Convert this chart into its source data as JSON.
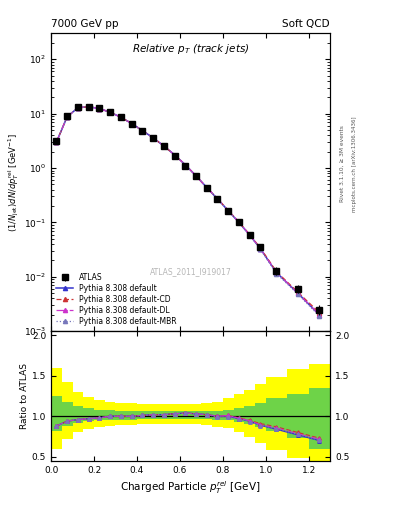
{
  "title_left": "7000 GeV pp",
  "title_right": "Soft QCD",
  "plot_title": "Relative $p_T$ (track jets)",
  "xlabel": "Charged Particle $p_T^{rel}$ [GeV]",
  "ylabel_main": "(1/Njet)dN/dp$_T^{rel}$ [GeV$^{-1}$]",
  "ylabel_ratio": "Ratio to ATLAS",
  "right_label1": "Rivet 3.1.10, ≥ 3M events",
  "right_label2": "mcplots.cern.ch [arXiv:1306.3436]",
  "watermark": "ATLAS_2011_I919017",
  "atlas_x": [
    0.025,
    0.075,
    0.125,
    0.175,
    0.225,
    0.275,
    0.325,
    0.375,
    0.425,
    0.475,
    0.525,
    0.575,
    0.625,
    0.675,
    0.725,
    0.775,
    0.825,
    0.875,
    0.925,
    0.975,
    1.05,
    1.15,
    1.25
  ],
  "atlas_y": [
    3.2,
    9.0,
    13.0,
    13.5,
    12.5,
    10.5,
    8.5,
    6.5,
    4.8,
    3.5,
    2.5,
    1.7,
    1.1,
    0.7,
    0.43,
    0.27,
    0.16,
    0.1,
    0.06,
    0.035,
    0.013,
    0.006,
    0.0025
  ],
  "atlas_yerr": [
    0.4,
    0.5,
    0.5,
    0.5,
    0.4,
    0.4,
    0.3,
    0.3,
    0.2,
    0.15,
    0.1,
    0.07,
    0.05,
    0.03,
    0.02,
    0.015,
    0.01,
    0.006,
    0.004,
    0.003,
    0.002,
    0.001,
    0.0005
  ],
  "mc_x": [
    0.025,
    0.075,
    0.125,
    0.175,
    0.225,
    0.275,
    0.325,
    0.375,
    0.425,
    0.475,
    0.525,
    0.575,
    0.625,
    0.675,
    0.725,
    0.775,
    0.825,
    0.875,
    0.925,
    0.975,
    1.05,
    1.15,
    1.25
  ],
  "pythia_default_y": [
    3.0,
    8.8,
    12.8,
    13.4,
    12.4,
    10.6,
    8.6,
    6.6,
    4.9,
    3.6,
    2.55,
    1.75,
    1.15,
    0.72,
    0.44,
    0.27,
    0.165,
    0.1,
    0.059,
    0.033,
    0.012,
    0.005,
    0.002
  ],
  "pythia_cd_y": [
    3.0,
    8.8,
    12.8,
    13.4,
    12.4,
    10.6,
    8.6,
    6.6,
    4.9,
    3.6,
    2.55,
    1.75,
    1.15,
    0.72,
    0.44,
    0.275,
    0.167,
    0.102,
    0.06,
    0.034,
    0.0125,
    0.0052,
    0.0022
  ],
  "pythia_dl_y": [
    3.0,
    8.8,
    12.8,
    13.4,
    12.4,
    10.6,
    8.6,
    6.6,
    4.9,
    3.6,
    2.55,
    1.75,
    1.15,
    0.72,
    0.44,
    0.274,
    0.166,
    0.101,
    0.059,
    0.033,
    0.012,
    0.005,
    0.002
  ],
  "pythia_mbr_y": [
    3.0,
    8.8,
    12.8,
    13.4,
    12.4,
    10.6,
    8.6,
    6.6,
    4.9,
    3.6,
    2.55,
    1.75,
    1.15,
    0.72,
    0.44,
    0.272,
    0.164,
    0.1,
    0.058,
    0.032,
    0.0115,
    0.0048,
    0.0019
  ],
  "ratio_default": [
    0.88,
    0.94,
    0.96,
    0.97,
    0.98,
    1.0,
    1.0,
    1.0,
    1.01,
    1.02,
    1.02,
    1.03,
    1.04,
    1.03,
    1.02,
    1.0,
    1.0,
    0.97,
    0.94,
    0.89,
    0.84,
    0.77,
    0.7
  ],
  "ratio_cd": [
    0.88,
    0.94,
    0.96,
    0.97,
    0.98,
    1.0,
    1.0,
    1.0,
    1.01,
    1.02,
    1.02,
    1.03,
    1.04,
    1.03,
    1.02,
    1.0,
    1.01,
    0.98,
    0.95,
    0.91,
    0.87,
    0.8,
    0.73
  ],
  "ratio_dl": [
    0.88,
    0.94,
    0.96,
    0.97,
    0.98,
    1.0,
    1.0,
    1.0,
    1.01,
    1.02,
    1.02,
    1.03,
    1.04,
    1.03,
    1.02,
    1.0,
    1.01,
    0.975,
    0.945,
    0.895,
    0.855,
    0.785,
    0.715
  ],
  "ratio_mbr": [
    0.88,
    0.94,
    0.96,
    0.97,
    0.98,
    1.0,
    1.0,
    1.0,
    1.01,
    1.02,
    1.02,
    1.03,
    1.04,
    1.03,
    1.02,
    0.99,
    0.99,
    0.965,
    0.935,
    0.885,
    0.845,
    0.775,
    0.705
  ],
  "band_x": [
    0.0,
    0.05,
    0.1,
    0.15,
    0.2,
    0.25,
    0.3,
    0.35,
    0.4,
    0.45,
    0.5,
    0.55,
    0.6,
    0.65,
    0.7,
    0.75,
    0.8,
    0.85,
    0.9,
    0.95,
    1.0,
    1.1,
    1.2,
    1.3
  ],
  "green_lo": [
    0.82,
    0.88,
    0.92,
    0.94,
    0.95,
    0.96,
    0.96,
    0.96,
    0.97,
    0.97,
    0.97,
    0.97,
    0.97,
    0.97,
    0.97,
    0.96,
    0.95,
    0.93,
    0.9,
    0.87,
    0.82,
    0.73,
    0.6,
    0.6
  ],
  "green_hi": [
    1.25,
    1.18,
    1.13,
    1.1,
    1.08,
    1.08,
    1.07,
    1.07,
    1.06,
    1.06,
    1.06,
    1.06,
    1.06,
    1.06,
    1.06,
    1.07,
    1.08,
    1.1,
    1.13,
    1.17,
    1.22,
    1.28,
    1.35,
    1.35
  ],
  "yellow_lo": [
    0.6,
    0.72,
    0.8,
    0.84,
    0.87,
    0.88,
    0.89,
    0.89,
    0.9,
    0.9,
    0.9,
    0.9,
    0.9,
    0.9,
    0.89,
    0.87,
    0.85,
    0.8,
    0.74,
    0.67,
    0.58,
    0.48,
    0.45,
    0.45
  ],
  "yellow_hi": [
    1.6,
    1.42,
    1.3,
    1.24,
    1.2,
    1.18,
    1.17,
    1.16,
    1.15,
    1.15,
    1.15,
    1.15,
    1.15,
    1.15,
    1.16,
    1.18,
    1.22,
    1.27,
    1.33,
    1.4,
    1.48,
    1.58,
    1.65,
    1.65
  ],
  "color_default": "#3333cc",
  "color_cd": "#cc3333",
  "color_dl": "#cc33cc",
  "color_mbr": "#7777bb",
  "ylim_main": [
    0.001,
    300
  ],
  "ylim_ratio": [
    0.45,
    2.05
  ],
  "xlim": [
    0.0,
    1.3
  ],
  "yticks_ratio": [
    0.5,
    1.0,
    1.5,
    2.0
  ]
}
